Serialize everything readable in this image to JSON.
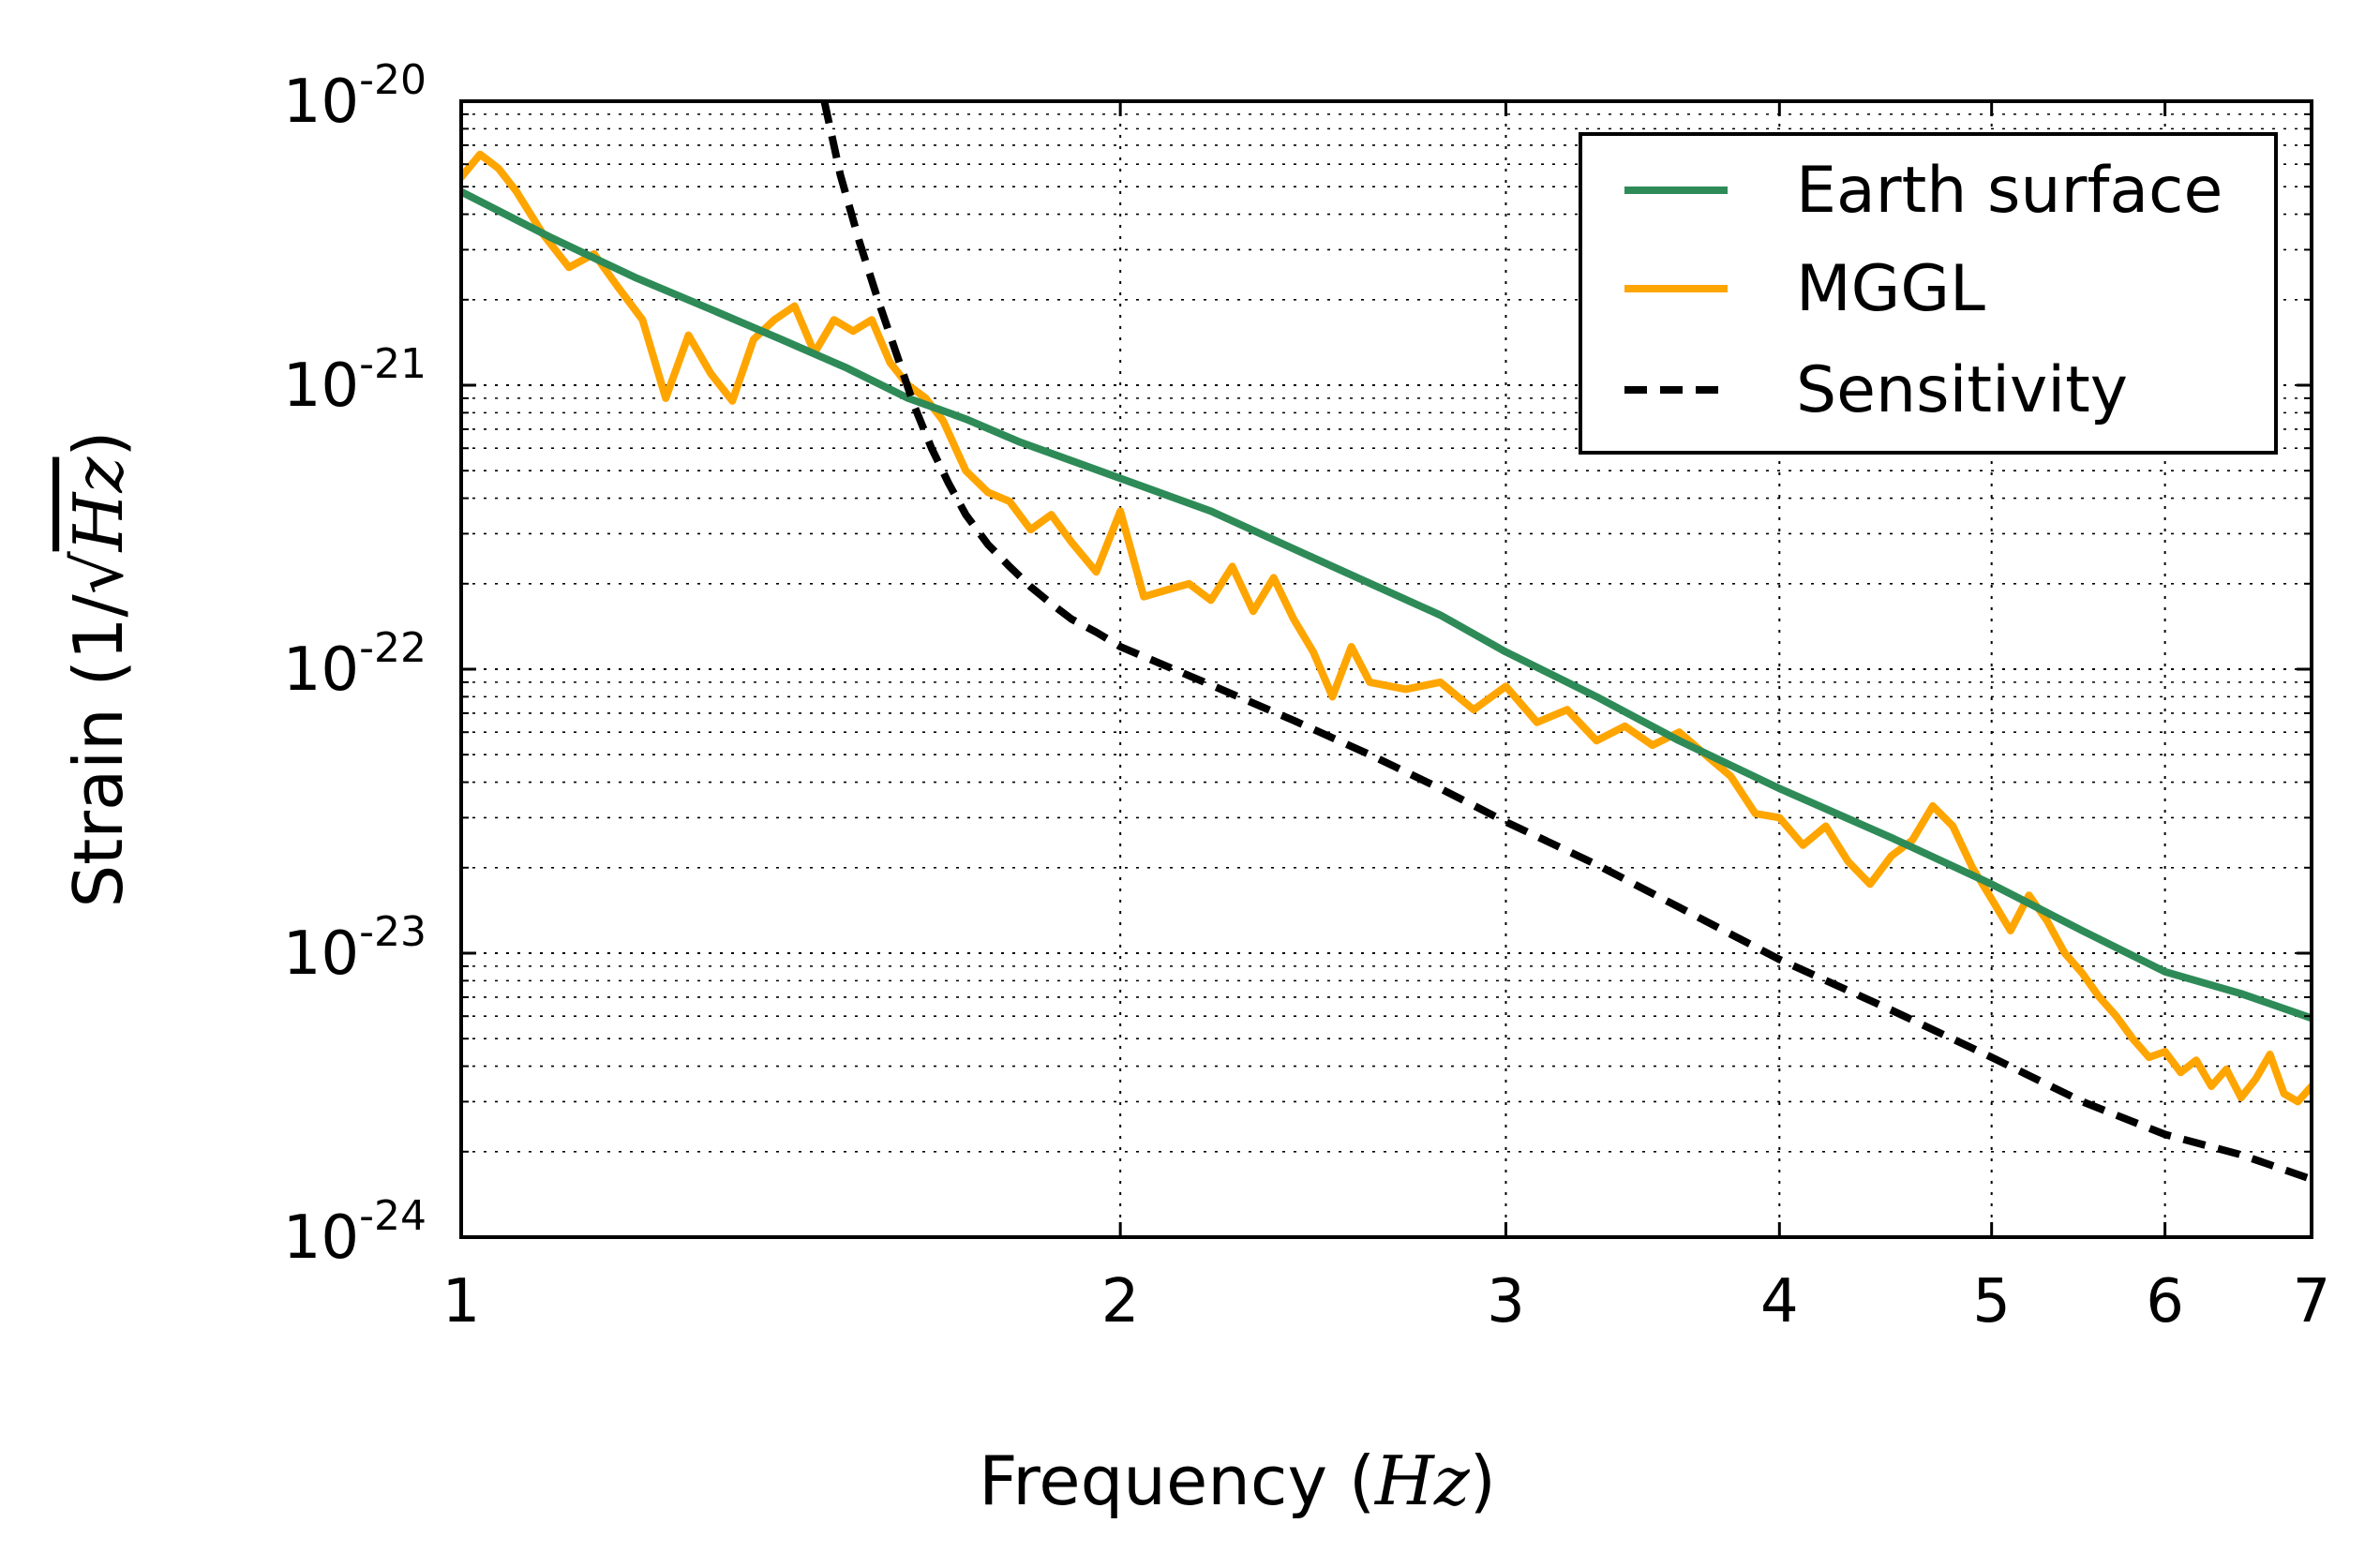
{
  "chart_data": {
    "type": "line",
    "title": "",
    "xscale": "log",
    "yscale": "log",
    "xlim": [
      1,
      7
    ],
    "ylim": [
      1e-24,
      1e-20
    ],
    "xticks": [
      1,
      2,
      3,
      4,
      5,
      6,
      7
    ],
    "xtick_labels": [
      "1",
      "2",
      "3",
      "4",
      "5",
      "6",
      "7"
    ],
    "yticks": [
      1e-24,
      1e-23,
      1e-22,
      1e-21,
      1e-20
    ],
    "ytick_labels": [
      {
        "base": "10",
        "exp": "-24"
      },
      {
        "base": "10",
        "exp": "-23"
      },
      {
        "base": "10",
        "exp": "-22"
      },
      {
        "base": "10",
        "exp": "-21"
      },
      {
        "base": "10",
        "exp": "-20"
      }
    ],
    "xlabel": {
      "text": "Frequency (",
      "math": "Hz",
      "close": ")"
    },
    "ylabel": {
      "text": "Strain (1/√",
      "math": "Hz",
      "close": ")"
    },
    "grid": true,
    "legend_position": "top-right",
    "series": [
      {
        "name": "Earth surface",
        "color": "#2e8b57",
        "style": "solid",
        "x": [
          1.0,
          1.1,
          1.2,
          1.3,
          1.4,
          1.5,
          1.6,
          1.7,
          1.8,
          2.0,
          2.2,
          2.5,
          2.8,
          3.0,
          3.3,
          3.6,
          4.0,
          4.5,
          5.0,
          5.5,
          6.0,
          6.5,
          7.0
        ],
        "y": [
          4.8e-21,
          3.3e-21,
          2.4e-21,
          1.85e-21,
          1.45e-21,
          1.15e-21,
          9e-22,
          7.6e-22,
          6.3e-22,
          4.7e-22,
          3.6e-22,
          2.3e-22,
          1.55e-22,
          1.15e-22,
          8e-23,
          5.6e-23,
          3.8e-23,
          2.55e-23,
          1.75e-23,
          1.2e-23,
          8.6e-24,
          7.2e-24,
          5.9e-24
        ]
      },
      {
        "name": "MGGL",
        "color": "#ffa500",
        "style": "solid",
        "x": [
          1.0,
          1.02,
          1.04,
          1.06,
          1.09,
          1.12,
          1.15,
          1.18,
          1.21,
          1.24,
          1.27,
          1.3,
          1.33,
          1.36,
          1.39,
          1.42,
          1.45,
          1.48,
          1.51,
          1.54,
          1.57,
          1.6,
          1.63,
          1.66,
          1.7,
          1.74,
          1.78,
          1.82,
          1.86,
          1.9,
          1.95,
          2.0,
          2.05,
          2.1,
          2.15,
          2.2,
          2.25,
          2.3,
          2.35,
          2.4,
          2.45,
          2.5,
          2.55,
          2.6,
          2.7,
          2.8,
          2.9,
          3.0,
          3.1,
          3.2,
          3.3,
          3.4,
          3.5,
          3.6,
          3.7,
          3.8,
          3.9,
          4.0,
          4.1,
          4.2,
          4.3,
          4.4,
          4.5,
          4.6,
          4.7,
          4.8,
          4.9,
          5.0,
          5.1,
          5.2,
          5.3,
          5.4,
          5.5,
          5.6,
          5.7,
          5.8,
          5.9,
          6.0,
          6.1,
          6.2,
          6.3,
          6.4,
          6.5,
          6.6,
          6.7,
          6.8,
          6.9,
          7.0
        ],
        "y": [
          5.4e-21,
          6.5e-21,
          5.8e-21,
          4.8e-21,
          3.4e-21,
          2.6e-21,
          2.9e-21,
          2.2e-21,
          1.7e-21,
          9e-22,
          1.5e-21,
          1.1e-21,
          8.8e-22,
          1.45e-21,
          1.7e-21,
          1.9e-21,
          1.3e-21,
          1.7e-21,
          1.55e-21,
          1.7e-21,
          1.2e-21,
          1e-21,
          9e-22,
          7.5e-22,
          5e-22,
          4.2e-22,
          3.9e-22,
          3.1e-22,
          3.5e-22,
          2.8e-22,
          2.2e-22,
          3.6e-22,
          1.8e-22,
          1.9e-22,
          2e-22,
          1.75e-22,
          2.3e-22,
          1.6e-22,
          2.1e-22,
          1.5e-22,
          1.15e-22,
          8e-23,
          1.2e-22,
          9e-23,
          8.5e-23,
          9e-23,
          7.2e-23,
          8.7e-23,
          6.5e-23,
          7.2e-23,
          5.6e-23,
          6.3e-23,
          5.4e-23,
          6e-23,
          5e-23,
          4.2e-23,
          3.1e-23,
          3e-23,
          2.4e-23,
          2.8e-23,
          2.1e-23,
          1.75e-23,
          2.2e-23,
          2.5e-23,
          3.3e-23,
          2.8e-23,
          2e-23,
          1.55e-23,
          1.2e-23,
          1.6e-23,
          1.3e-23,
          1e-23,
          8.5e-24,
          7e-24,
          6e-24,
          5e-24,
          4.3e-24,
          4.5e-24,
          3.8e-24,
          4.2e-24,
          3.4e-24,
          3.9e-24,
          3.1e-24,
          3.6e-24,
          4.4e-24,
          3.2e-24,
          3e-24,
          3.4e-24
        ]
      },
      {
        "name": "Sensitivity",
        "color": "#000000",
        "style": "dashed",
        "x": [
          1.465,
          1.49,
          1.52,
          1.55,
          1.58,
          1.61,
          1.64,
          1.67,
          1.7,
          1.74,
          1.78,
          1.82,
          1.86,
          1.9,
          1.95,
          2.0,
          2.2,
          2.4,
          2.6,
          2.8,
          3.0,
          3.3,
          3.6,
          4.0,
          4.5,
          5.0,
          5.5,
          6.0,
          6.5,
          7.0
        ],
        "y": [
          1e-20,
          5.5e-21,
          3.2e-21,
          2e-21,
          1.3e-21,
          8.5e-22,
          6e-22,
          4.5e-22,
          3.5e-22,
          2.75e-22,
          2.3e-22,
          1.95e-22,
          1.7e-22,
          1.5e-22,
          1.35e-22,
          1.2e-22,
          8.8e-23,
          6.6e-23,
          5e-23,
          3.8e-23,
          2.9e-23,
          2.05e-23,
          1.45e-23,
          9.5e-24,
          6.3e-24,
          4.3e-24,
          3e-24,
          2.3e-24,
          1.95e-24,
          1.6e-24
        ]
      }
    ]
  }
}
